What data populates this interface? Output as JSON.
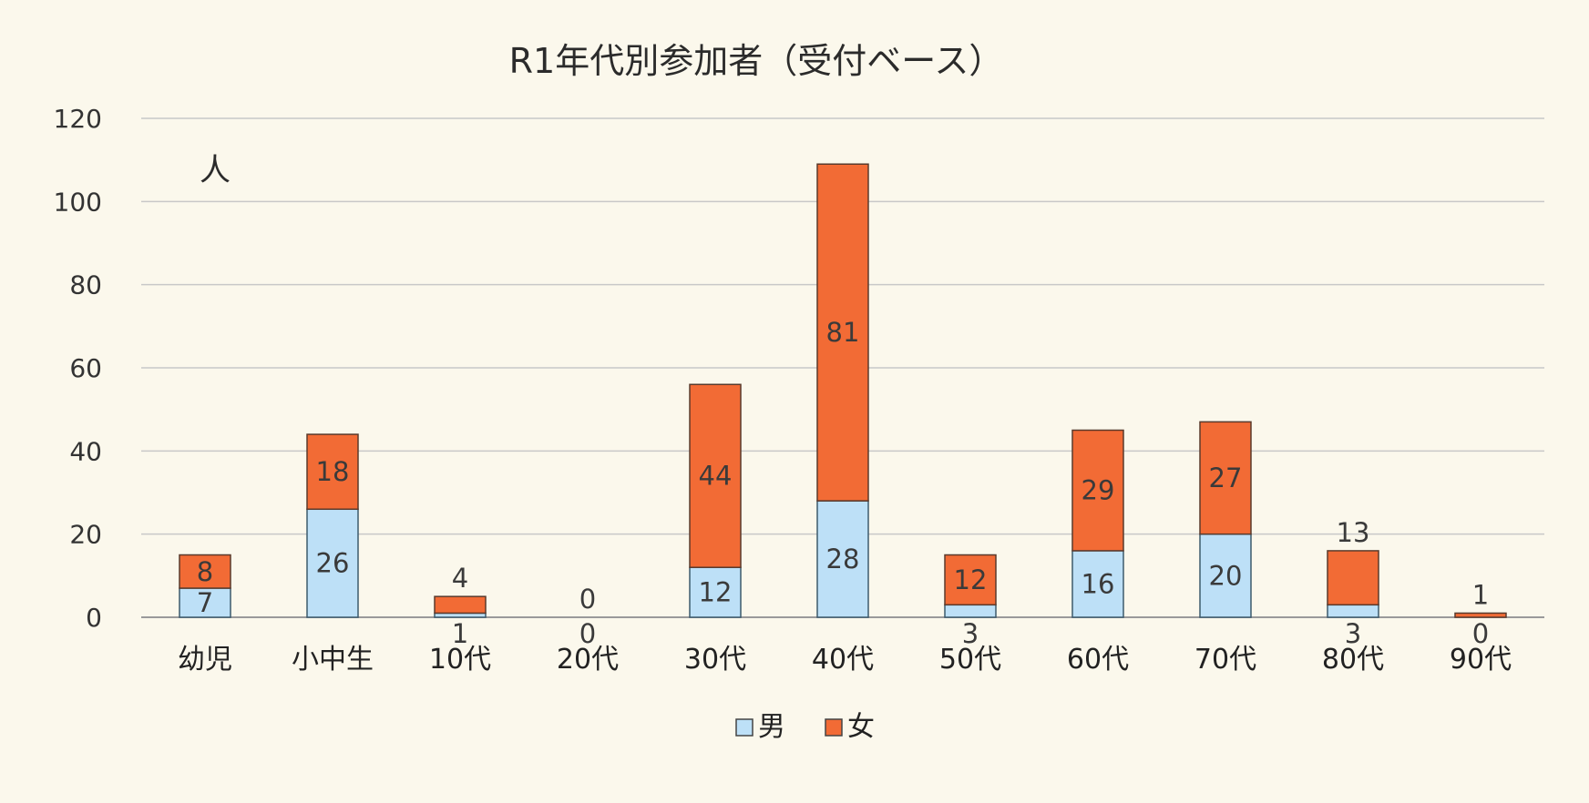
{
  "chart_data": {
    "type": "bar",
    "stacked": true,
    "title": "R1年代別参加者（受付ベース）",
    "ylabel": "人",
    "xlabel": "",
    "ylim": [
      0,
      120
    ],
    "yticks": [
      "0",
      "20",
      "40",
      "60",
      "80",
      "100",
      "120"
    ],
    "grid": true,
    "legend_position": "bottom",
    "categories": [
      "幼児",
      "小中生",
      "10代",
      "20代",
      "30代",
      "40代",
      "50代",
      "60代",
      "70代",
      "80代",
      "90代"
    ],
    "series": [
      {
        "name": "男",
        "color": "#bde0f7",
        "values": [
          7,
          26,
          1,
          0,
          12,
          28,
          3,
          16,
          20,
          3,
          0
        ]
      },
      {
        "name": "女",
        "color": "#f26b35",
        "values": [
          8,
          18,
          4,
          0,
          44,
          81,
          12,
          29,
          27,
          13,
          1
        ]
      }
    ]
  }
}
